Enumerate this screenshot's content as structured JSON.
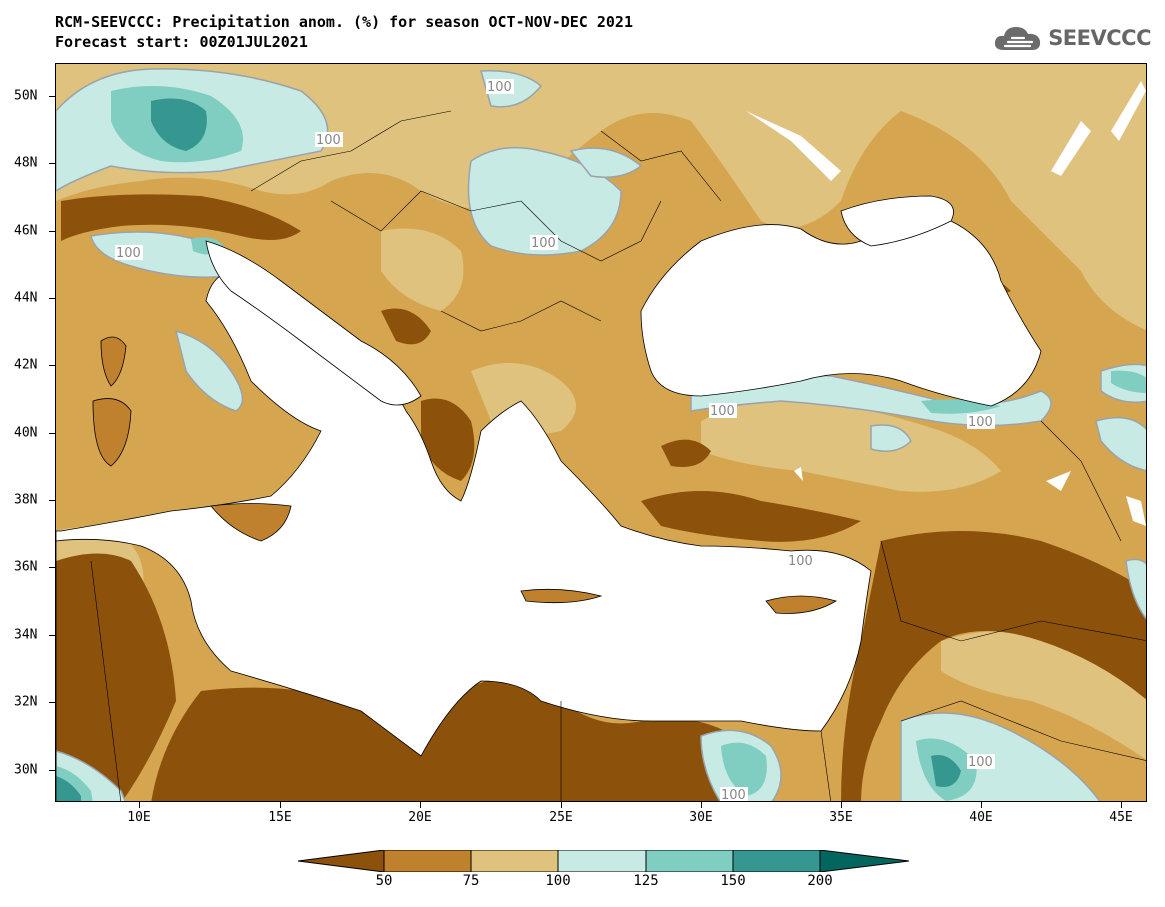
{
  "header": {
    "title_line1": "RCM-SEEVCCC: Precipitation anom. (%) for season OCT-NOV-DEC 2021",
    "title_line2": "Forecast start: 00Z01JUL2021"
  },
  "logo": {
    "text": "SEEVCCC",
    "icon": "cloud-icon"
  },
  "map": {
    "region": "Eastern Mediterranean / Black Sea",
    "latitude_labels": [
      "50N",
      "48N",
      "46N",
      "44N",
      "42N",
      "40N",
      "38N",
      "36N",
      "34N",
      "32N",
      "30N"
    ],
    "longitude_labels": [
      "10E",
      "15E",
      "20E",
      "25E",
      "30E",
      "35E",
      "40E",
      "45E"
    ],
    "contour_labels": [
      "100",
      "100",
      "100",
      "100",
      "100",
      "100",
      "100",
      "100",
      "100"
    ],
    "colors": {
      "below_50": "#8c510a",
      "50_75": "#bf812d",
      "75_100": "#dfc27d",
      "100_125": "#c7eae5",
      "125_150": "#80cdc1",
      "150_200": "#35978f",
      "above_200": "#01665e",
      "sea": "#ffffff",
      "contour_100": "#9aa3ab"
    }
  },
  "legend": {
    "labels": [
      "50",
      "75",
      "100",
      "125",
      "150",
      "200"
    ],
    "colors": [
      "#8c510a",
      "#bf812d",
      "#dfc27d",
      "#c7eae5",
      "#80cdc1",
      "#35978f",
      "#01665e"
    ]
  }
}
